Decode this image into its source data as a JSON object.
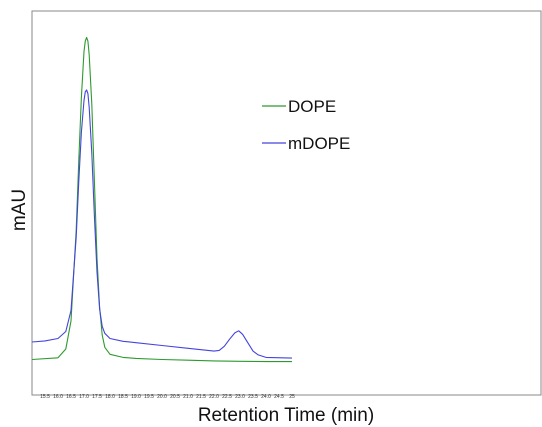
{
  "chart_data": {
    "type": "line",
    "title": "",
    "xlabel": "Retention Time (min)",
    "ylabel": "mAU",
    "xlim": [
      15.0,
      25.0
    ],
    "ylim": [
      0,
      100
    ],
    "x_ticks": [
      "15.5",
      "16.0",
      "16.5",
      "17.0",
      "17.5",
      "18.0",
      "18.5",
      "19.0",
      "19.5",
      "20.0",
      "20.5",
      "21.0",
      "21.5",
      "22.0",
      "22.5",
      "23.0",
      "23.5",
      "24.0",
      "24.5",
      "25"
    ],
    "x_tick_values": [
      15.5,
      16.0,
      16.5,
      17.0,
      17.5,
      18.0,
      18.5,
      19.0,
      19.5,
      20.0,
      20.5,
      21.0,
      21.5,
      22.0,
      22.5,
      23.0,
      23.5,
      24.0,
      24.5,
      25.0
    ],
    "grid": false,
    "legend_position": "upper-center",
    "series": [
      {
        "name": "DOPE",
        "color": "#2e9a2e",
        "x": [
          15.0,
          16.0,
          16.3,
          16.5,
          16.7,
          16.8,
          16.9,
          17.0,
          17.05,
          17.1,
          17.15,
          17.2,
          17.3,
          17.4,
          17.5,
          17.6,
          17.7,
          17.8,
          18.0,
          18.5,
          19.0,
          20.0,
          21.0,
          22.0,
          23.0,
          24.0,
          25.0
        ],
        "y": [
          1.0,
          1.5,
          4.0,
          12.0,
          38.0,
          58.0,
          76.0,
          89.0,
          92.0,
          93.0,
          92.0,
          88.0,
          74.0,
          52.0,
          30.0,
          16.0,
          8.0,
          4.5,
          2.5,
          1.6,
          1.3,
          1.0,
          0.8,
          0.6,
          0.5,
          0.4,
          0.4
        ]
      },
      {
        "name": "mDOPE",
        "color": "#4444dd",
        "x": [
          15.0,
          15.5,
          16.0,
          16.3,
          16.5,
          16.7,
          16.8,
          16.9,
          17.0,
          17.05,
          17.1,
          17.15,
          17.2,
          17.3,
          17.4,
          17.5,
          17.6,
          17.7,
          17.8,
          18.0,
          18.5,
          19.0,
          20.0,
          21.0,
          22.0,
          22.2,
          22.4,
          22.6,
          22.8,
          22.95,
          23.1,
          23.3,
          23.5,
          23.7,
          24.0,
          25.0
        ],
        "y": [
          6.0,
          6.3,
          7.0,
          9.0,
          15.0,
          36.0,
          52.0,
          66.0,
          75.0,
          77.5,
          78.0,
          77.0,
          73.0,
          60.0,
          42.0,
          26.0,
          15.5,
          10.5,
          8.5,
          7.0,
          6.2,
          5.8,
          5.0,
          4.2,
          3.4,
          3.6,
          4.8,
          6.8,
          8.6,
          9.2,
          8.2,
          5.8,
          3.4,
          2.3,
          1.6,
          1.4
        ]
      }
    ]
  }
}
